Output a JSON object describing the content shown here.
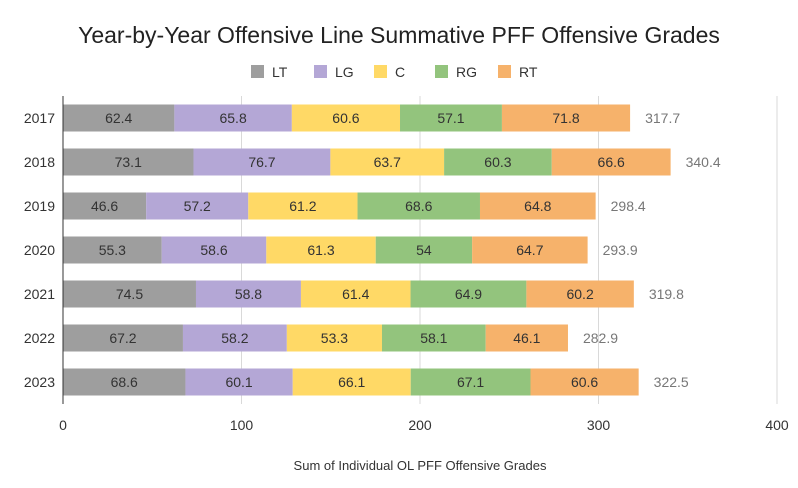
{
  "chart_data": {
    "type": "bar",
    "orientation": "horizontal",
    "stacked": true,
    "title": "Year-by-Year Offensive Line Summative PFF Offensive Grades",
    "xlabel": "Sum of Individual OL PFF Offensive Grades",
    "ylabel": "",
    "xlim": [
      0,
      400
    ],
    "xticks": [
      0,
      100,
      200,
      300,
      400
    ],
    "grid": true,
    "legend_position": "top",
    "categories": [
      "2017",
      "2018",
      "2019",
      "2020",
      "2021",
      "2022",
      "2023"
    ],
    "series": [
      {
        "name": "LT",
        "color": "#9e9e9e",
        "values": [
          62.4,
          73.1,
          46.6,
          55.3,
          74.5,
          67.2,
          68.6
        ]
      },
      {
        "name": "LG",
        "color": "#b4a7d6",
        "values": [
          65.8,
          76.7,
          57.2,
          58.6,
          58.8,
          58.2,
          60.1
        ]
      },
      {
        "name": "C",
        "color": "#ffd966",
        "values": [
          60.6,
          63.7,
          61.2,
          61.3,
          61.4,
          53.3,
          66.1
        ]
      },
      {
        "name": "RG",
        "color": "#93c47d",
        "values": [
          57.1,
          60.3,
          68.6,
          54,
          64.9,
          58.1,
          67.1
        ]
      },
      {
        "name": "RT",
        "color": "#f6b26b",
        "values": [
          71.8,
          66.6,
          64.8,
          64.7,
          60.2,
          46.1,
          60.6
        ]
      }
    ],
    "totals": [
      "317.7",
      "340.4",
      "298.4",
      "293.9",
      "319.8",
      "282.9",
      "322.5"
    ]
  }
}
